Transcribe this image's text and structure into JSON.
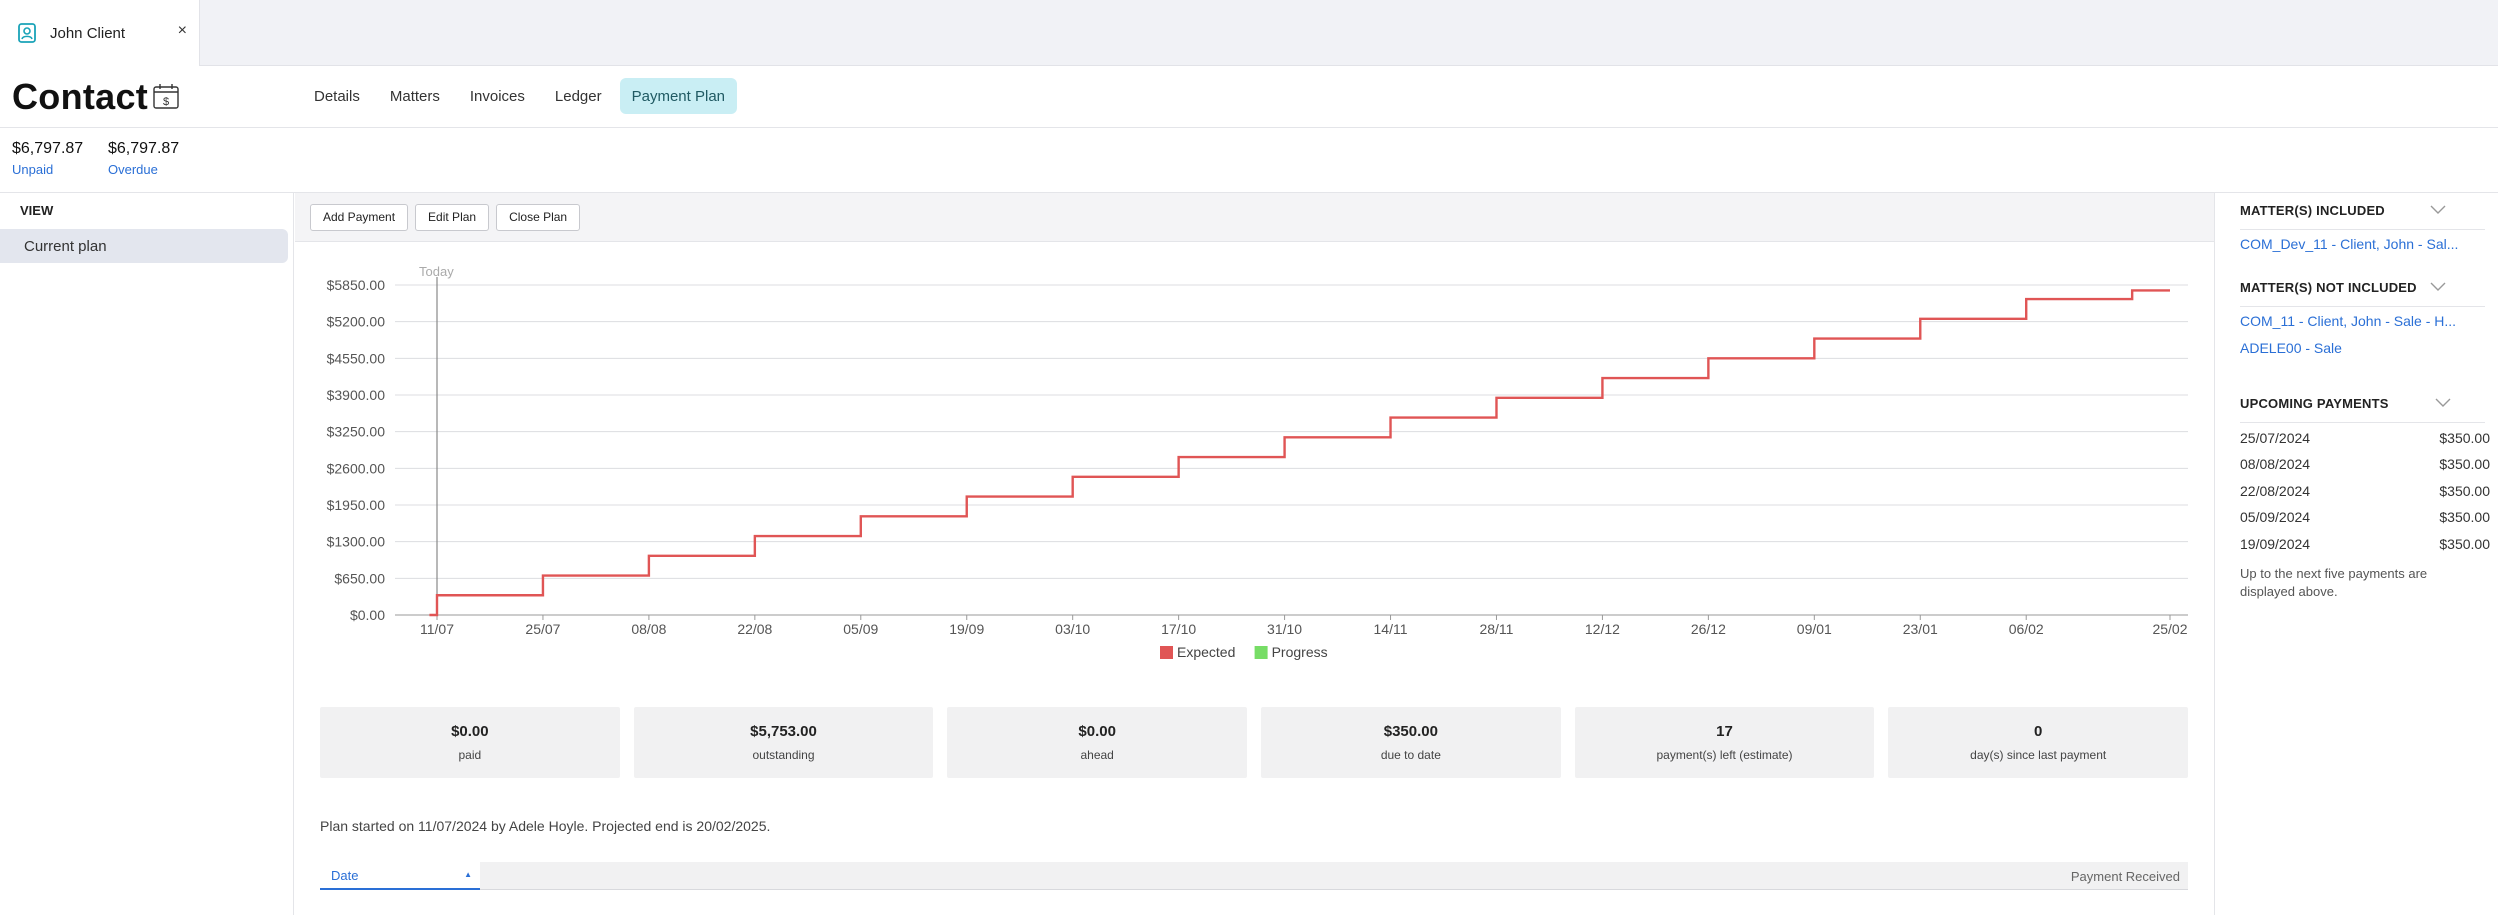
{
  "window": {
    "tab_title": "John Client",
    "close_glyph": "×"
  },
  "header": {
    "title": "Contact",
    "tabs": [
      {
        "label": "Details"
      },
      {
        "label": "Matters"
      },
      {
        "label": "Invoices"
      },
      {
        "label": "Ledger"
      },
      {
        "label": "Payment Plan",
        "active": true
      }
    ]
  },
  "summary": {
    "unpaid_amount": "$6,797.87",
    "unpaid_label": "Unpaid",
    "overdue_amount": "$6,797.87",
    "overdue_label": "Overdue"
  },
  "sidebar": {
    "heading": "VIEW",
    "items": [
      {
        "label": "Current plan",
        "active": true
      }
    ]
  },
  "toolbar": {
    "add_payment": "Add Payment",
    "edit_plan": "Edit Plan",
    "close_plan": "Close Plan"
  },
  "chart_data": {
    "type": "line",
    "step": true,
    "title": "",
    "xlabel": "",
    "ylabel": "",
    "x_ticks": [
      "11/07",
      "25/07",
      "08/08",
      "22/08",
      "05/09",
      "19/09",
      "03/10",
      "17/10",
      "31/10",
      "14/11",
      "28/11",
      "12/12",
      "26/12",
      "09/01",
      "23/01",
      "06/02",
      "25/02"
    ],
    "y_ticks": [
      "$0.00",
      "$650.00",
      "$1300.00",
      "$1950.00",
      "$2600.00",
      "$3250.00",
      "$3900.00",
      "$4550.00",
      "$5200.00",
      "$5850.00"
    ],
    "ylim": [
      0,
      5850
    ],
    "today_label": "Today",
    "today_x": "11/07",
    "legend_position": "bottom-center",
    "series": [
      {
        "name": "Expected",
        "color": "#e05555",
        "points": [
          {
            "x": "10/07",
            "y": 0
          },
          {
            "x": "11/07",
            "y": 350
          },
          {
            "x": "25/07",
            "y": 700
          },
          {
            "x": "08/08",
            "y": 1050
          },
          {
            "x": "22/08",
            "y": 1400
          },
          {
            "x": "05/09",
            "y": 1750
          },
          {
            "x": "19/09",
            "y": 2100
          },
          {
            "x": "03/10",
            "y": 2450
          },
          {
            "x": "17/10",
            "y": 2800
          },
          {
            "x": "31/10",
            "y": 3150
          },
          {
            "x": "14/11",
            "y": 3500
          },
          {
            "x": "28/11",
            "y": 3850
          },
          {
            "x": "12/12",
            "y": 4200
          },
          {
            "x": "26/12",
            "y": 4550
          },
          {
            "x": "09/01",
            "y": 4900
          },
          {
            "x": "23/01",
            "y": 5250
          },
          {
            "x": "06/02",
            "y": 5600
          },
          {
            "x": "20/02",
            "y": 5753
          },
          {
            "x": "25/02",
            "y": 5753
          }
        ]
      },
      {
        "name": "Progress",
        "color": "#77dd66",
        "points": []
      }
    ]
  },
  "stats": [
    {
      "value": "$0.00",
      "label": "paid"
    },
    {
      "value": "$5,753.00",
      "label": "outstanding"
    },
    {
      "value": "$0.00",
      "label": "ahead"
    },
    {
      "value": "$350.00",
      "label": "due to date"
    },
    {
      "value": "17",
      "label": "payment(s) left (estimate)"
    },
    {
      "value": "0",
      "label": "day(s) since last payment"
    }
  ],
  "plan_note": "Plan started on 11/07/2024 by Adele Hoyle. Projected end is 20/02/2025.",
  "table": {
    "date_header": "Date",
    "received_header": "Payment Received"
  },
  "right_panel": {
    "matters_included_heading": "MATTER(S) INCLUDED",
    "matters_included": [
      "COM_Dev_11 - Client, John - Sal..."
    ],
    "matters_not_included_heading": "MATTER(S) NOT INCLUDED",
    "matters_not_included": [
      "COM_11 - Client, John - Sale - H...",
      "ADELE00 - Sale"
    ],
    "upcoming_heading": "UPCOMING PAYMENTS",
    "upcoming": [
      {
        "date": "25/07/2024",
        "amount": "$350.00"
      },
      {
        "date": "08/08/2024",
        "amount": "$350.00"
      },
      {
        "date": "22/08/2024",
        "amount": "$350.00"
      },
      {
        "date": "05/09/2024",
        "amount": "$350.00"
      },
      {
        "date": "19/09/2024",
        "amount": "$350.00"
      }
    ],
    "upcoming_note": "Up to the next five payments are displayed above."
  },
  "colors": {
    "accent": "#2a6fd6",
    "active_tab_bg": "#c9eef4",
    "expected_line": "#e05555",
    "progress": "#77dd66"
  }
}
